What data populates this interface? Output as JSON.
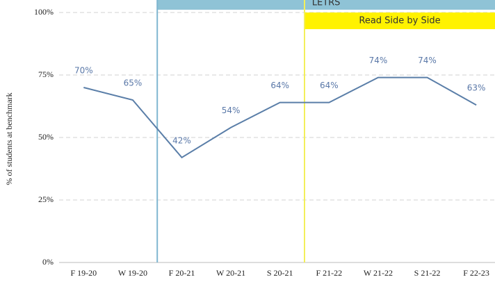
{
  "chart_data": {
    "type": "line",
    "y_label": "% of students at benchmark",
    "categories": [
      "F 19-20",
      "W 19-20",
      "F 20-21",
      "W 20-21",
      "S 20-21",
      "F 21-22",
      "W 21-22",
      "S 21-22",
      "F 22-23"
    ],
    "values": [
      70,
      65,
      42,
      54,
      64,
      64,
      74,
      74,
      63
    ],
    "value_labels": [
      "70%",
      "65%",
      "42%",
      "54%",
      "64%",
      "64%",
      "74%",
      "74%",
      "63%"
    ],
    "color": "#5a7ea8",
    "ylim": [
      0,
      100
    ],
    "yticks": [
      {
        "value": 0,
        "label": "0%"
      },
      {
        "value": 25,
        "label": "25%"
      },
      {
        "value": 50,
        "label": "50%"
      },
      {
        "value": 75,
        "label": "75%"
      },
      {
        "value": 100,
        "label": "100%"
      }
    ],
    "grid": true,
    "annotations": [
      {
        "text": "LETRS",
        "from": "F 20-21",
        "color": "#8fc3d6",
        "line_color": "#7fb6d0"
      },
      {
        "text": "Read Side by Side",
        "from": "F 21-22",
        "color": "#fff200",
        "line_color": "#f3ef5a"
      }
    ]
  }
}
